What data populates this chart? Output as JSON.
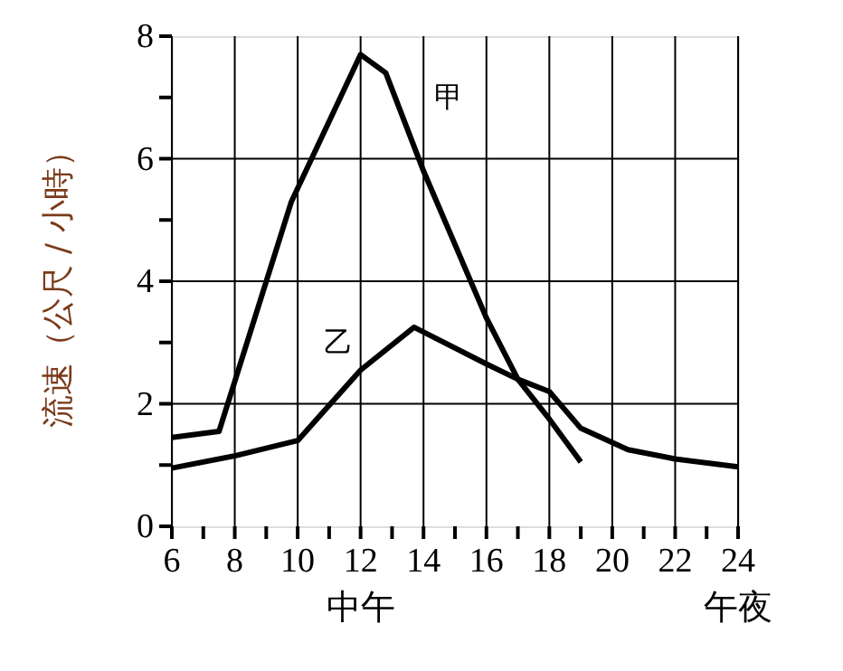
{
  "chart_data": {
    "type": "line",
    "ylabel": "流速（公尺 / 小時）",
    "x": [
      6,
      7.5,
      9.8,
      12,
      12.8,
      14,
      16,
      17,
      18,
      19
    ],
    "series": [
      {
        "name": "甲",
        "color": "#000000",
        "values": [
          1.45,
          1.55,
          5.3,
          7.7,
          7.4,
          5.8,
          3.4,
          2.4,
          1.75,
          1.05
        ]
      },
      {
        "name": "乙",
        "color": "#000000",
        "x": [
          6,
          8,
          10,
          12,
          13.7,
          16,
          17,
          18,
          19,
          20.5,
          22,
          24
        ],
        "values": [
          0.95,
          1.15,
          1.4,
          2.55,
          3.25,
          2.65,
          2.4,
          2.2,
          1.6,
          1.25,
          1.1,
          0.97
        ]
      }
    ],
    "xlim": [
      6,
      24
    ],
    "ylim": [
      0,
      8
    ],
    "xticks": [
      6,
      {
        "value": 7,
        "label": null
      },
      8,
      {
        "value": 9,
        "label": null
      },
      10,
      {
        "value": 11,
        "label": null
      },
      {
        "value": 12,
        "label": "12\n中午"
      },
      {
        "value": 13,
        "label": null
      },
      14,
      {
        "value": 15,
        "label": null
      },
      16,
      {
        "value": 17,
        "label": null
      },
      18,
      {
        "value": 19,
        "label": null
      },
      20,
      {
        "value": 21,
        "label": null
      },
      22,
      {
        "value": 23,
        "label": null
      },
      {
        "value": 24,
        "label": "24\n午夜"
      }
    ],
    "yticks": [
      0,
      {
        "value": 1,
        "label": null
      },
      2,
      {
        "value": 3,
        "label": null
      },
      4,
      {
        "value": 5,
        "label": null
      },
      6,
      {
        "value": 7,
        "label": null
      },
      8
    ],
    "grid": true,
    "marker": "none",
    "line_style": "solid"
  }
}
